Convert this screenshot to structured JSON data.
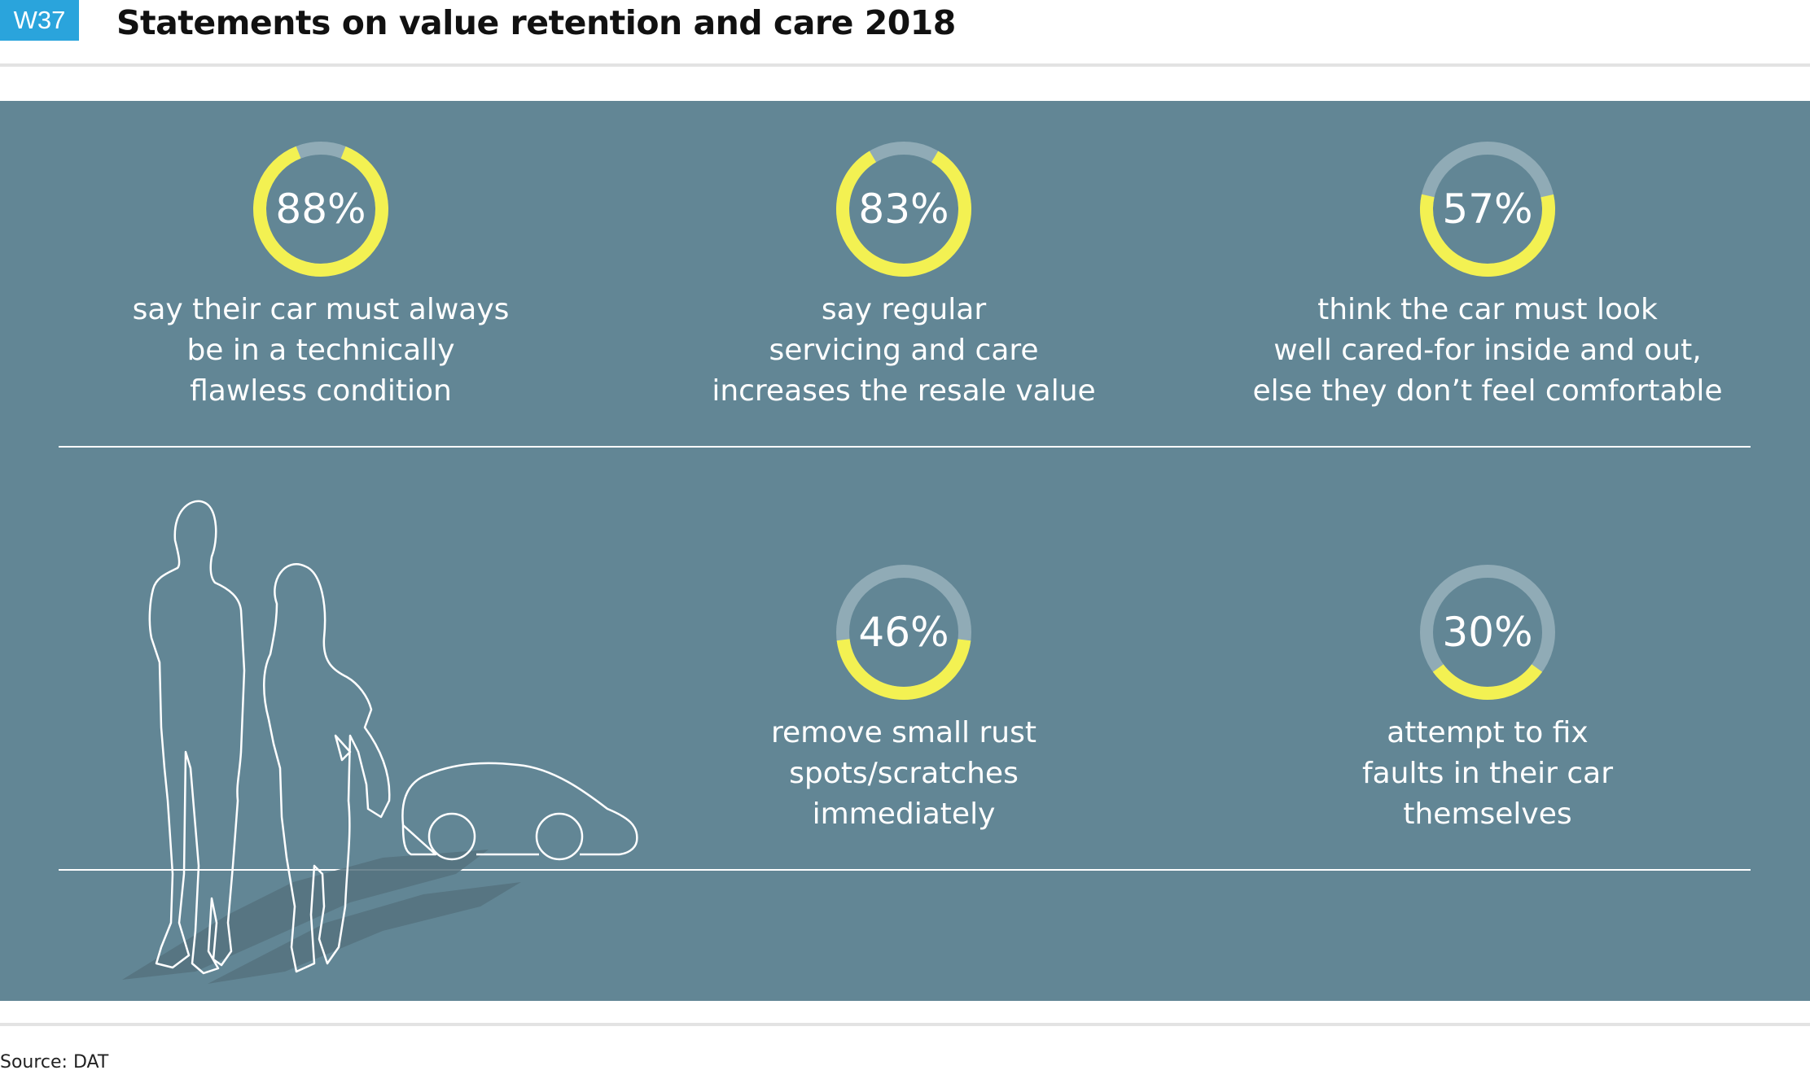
{
  "badge": "W37",
  "title": "Statements on value retention and care 2018",
  "source": "Source: DAT",
  "colors": {
    "panel": "#628695",
    "ring_fill": "#f3f152",
    "ring_track": "#90abb6",
    "badge": "#2aa4dc"
  },
  "chart_data": {
    "type": "donut",
    "title": "Statements on value retention and care 2018",
    "unit": "%",
    "items": [
      {
        "value": 88,
        "label": "88%",
        "lines": [
          "say their car must always",
          "be in a technically",
          "flawless condition"
        ]
      },
      {
        "value": 83,
        "label": "83%",
        "lines": [
          "say regular",
          "servicing and care",
          "increases the resale value"
        ]
      },
      {
        "value": 57,
        "label": "57%",
        "lines": [
          "think the car must look",
          "well cared-for inside and out,",
          "else they don’t feel comfortable"
        ]
      },
      {
        "value": 46,
        "label": "46%",
        "lines": [
          "remove small rust",
          "spots/scratches",
          "immediately"
        ]
      },
      {
        "value": 30,
        "label": "30%",
        "lines": [
          "attempt to fix",
          "faults in their car",
          "themselves"
        ]
      }
    ]
  }
}
